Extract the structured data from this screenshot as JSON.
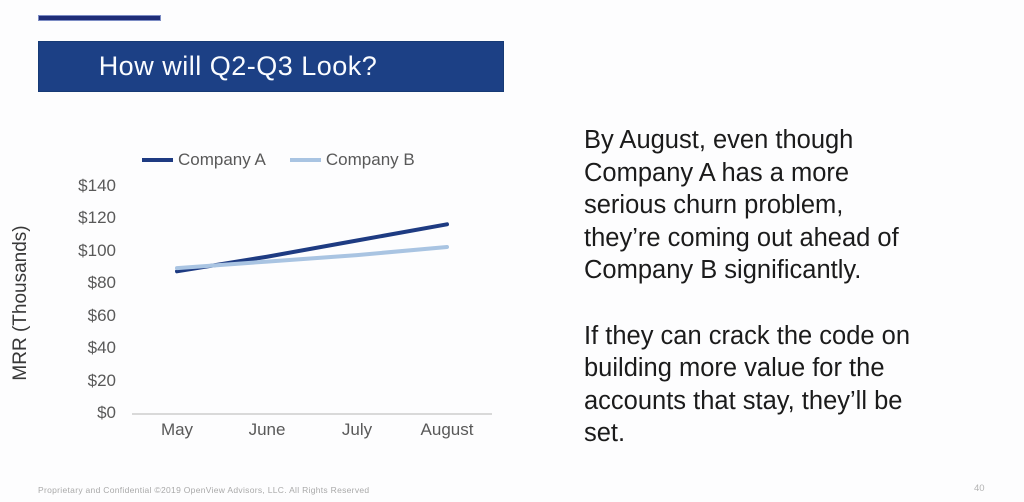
{
  "slide": {
    "title": "How will Q2-Q3 Look?",
    "page_number": "40",
    "footer": "Proprietary and Confidential ©2019 OpenView Advisors, LLC. All Rights Reserved"
  },
  "notes": {
    "para1": "By August, even though\nCompany A has a more\nserious churn problem,\nthey’re coming out ahead of\nCompany B significantly.",
    "para2": "If they can crack the code on\nbuilding more value for the\naccounts that stay, they’ll be\nset."
  },
  "chart_data": {
    "type": "line",
    "title": "",
    "categories": [
      "May",
      "June",
      "July",
      "August"
    ],
    "series": [
      {
        "name": "Company A",
        "values": [
          88,
          97,
          107,
          117
        ],
        "color": "#1e3b82"
      },
      {
        "name": "Company B",
        "values": [
          90,
          94,
          98,
          103
        ],
        "color": "#a9c4e2"
      }
    ],
    "xlabel": "",
    "ylabel": "MRR (Thousands)",
    "ylim": [
      0,
      140
    ],
    "ytick_step": 20,
    "ytick_prefix": "$",
    "legend_position": "top",
    "grid": false
  },
  "colors": {
    "title_bar": "#1c4085",
    "accent_line": "#1f2d78",
    "axis_text": "#595959",
    "axis_line": "#d9d9d9",
    "notes_text": "#1b1b1b"
  }
}
